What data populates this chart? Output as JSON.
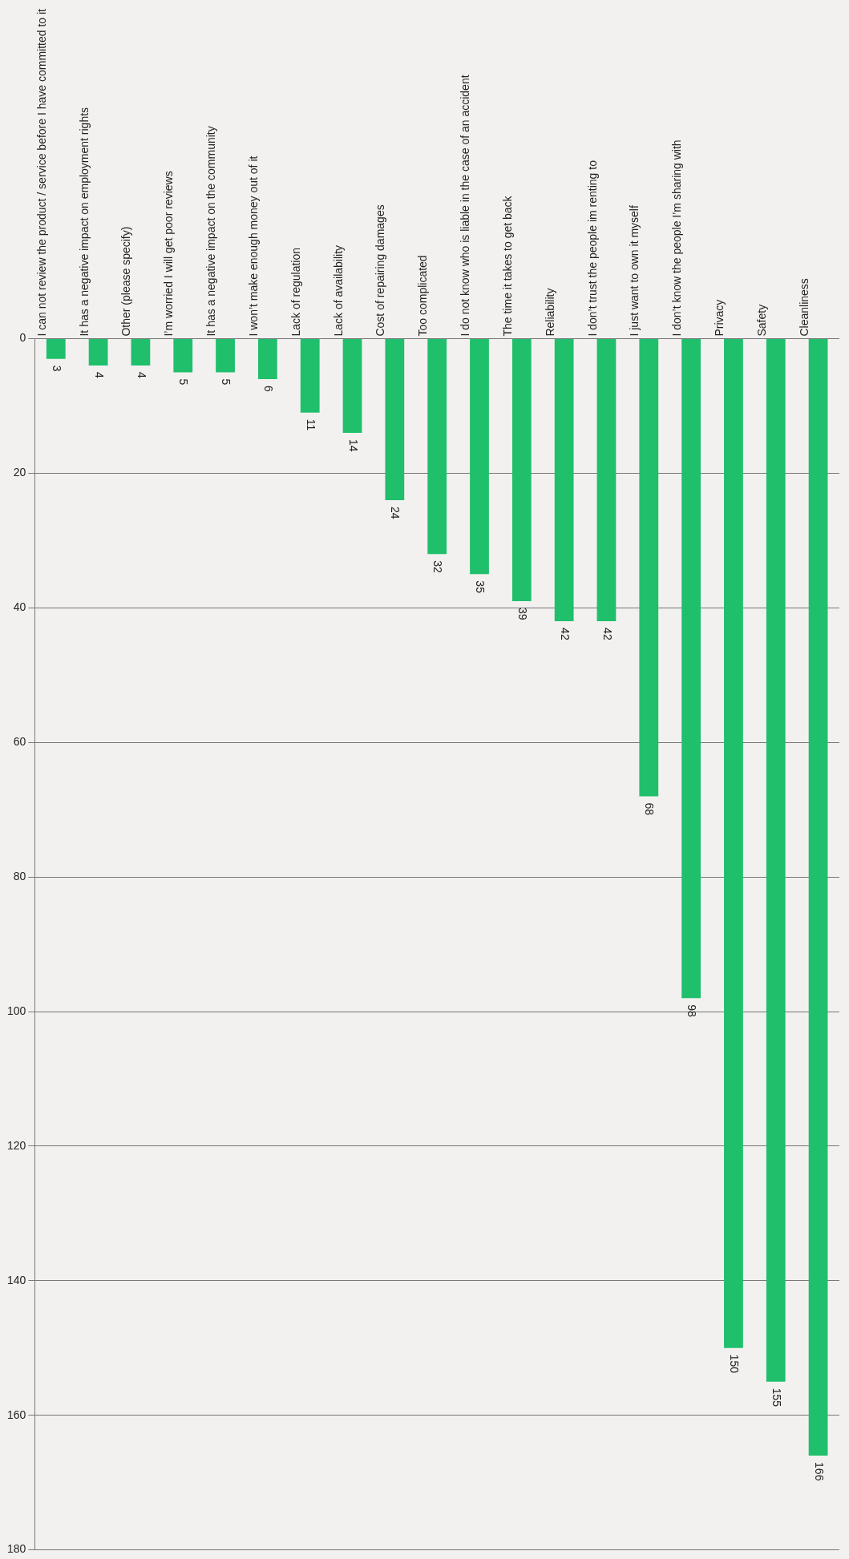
{
  "chart_data": {
    "type": "bar",
    "categories": [
      "I can not review the product / service before I have committed to it",
      "It has a negative impact on employment rights",
      "Other (please specify)",
      "I’m worried I will get poor reviews",
      "It has a negative impact on the community",
      "I won’t make enough money out of it",
      "Lack of regulation",
      "Lack of availability",
      "Cost of repairing damages",
      "Too complicated",
      "I do not know who is liable in the case of an accident",
      "The time it takes to get back",
      "Reliability",
      "I don’t trust the people im renting to",
      "I just want to own it myself",
      "I don’t know the people I’m sharing with",
      "Privacy",
      "Safety",
      "Cleanliness"
    ],
    "values": [
      3,
      4,
      4,
      5,
      5,
      6,
      11,
      14,
      24,
      32,
      35,
      39,
      42,
      42,
      68,
      98,
      150,
      155,
      166
    ],
    "color": "#1fbf6c",
    "ylim": [
      180,
      0
    ],
    "yticks": [
      0,
      20,
      40,
      60,
      80,
      100,
      120,
      140,
      160,
      180
    ],
    "grid": "y",
    "legend": false,
    "data_labels": true
  }
}
